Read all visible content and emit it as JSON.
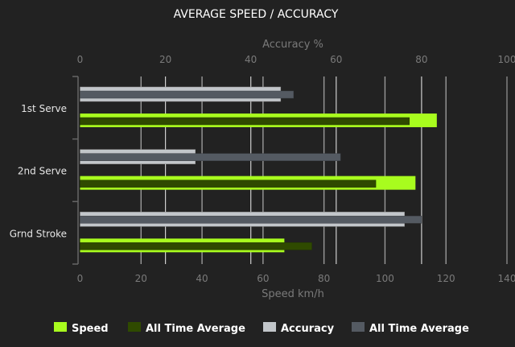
{
  "chart_data": {
    "type": "bar",
    "orientation": "horizontal",
    "title": "AVERAGE SPEED / ACCURACY",
    "categories": [
      "1st Serve",
      "2nd Serve",
      "Grnd Stroke"
    ],
    "top_axis": {
      "label": "Accuracy %",
      "range": [
        0,
        100
      ],
      "ticks": [
        0,
        20,
        40,
        60,
        80,
        100
      ]
    },
    "bottom_axis": {
      "label": "Speed km/h",
      "range": [
        0,
        140
      ],
      "ticks": [
        0,
        20,
        40,
        60,
        80,
        100,
        120,
        140
      ]
    },
    "grid": true,
    "legend_position": "bottom",
    "series": [
      {
        "name": "Speed",
        "axis": "bottom",
        "color": "#a8fc1e",
        "values": [
          117,
          110,
          67
        ]
      },
      {
        "name": "All Time Average",
        "axis": "bottom",
        "color": "#2f4a00",
        "values": [
          108,
          97,
          76
        ]
      },
      {
        "name": "Accuracy",
        "axis": "top",
        "color": "#c2c6ca",
        "values": [
          47,
          27,
          76
        ]
      },
      {
        "name": "All Time Average",
        "axis": "top",
        "color": "#545a62",
        "values": [
          50,
          61,
          80
        ]
      }
    ]
  }
}
